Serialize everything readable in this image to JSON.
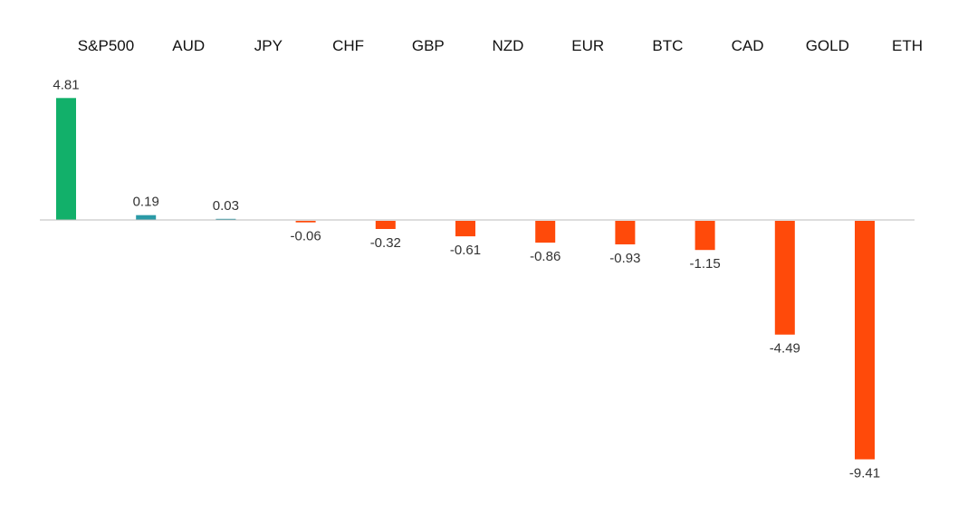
{
  "chart_data": {
    "type": "bar",
    "categories": [
      "S&P500",
      "AUD",
      "JPY",
      "CHF",
      "GBP",
      "NZD",
      "EUR",
      "BTC",
      "CAD",
      "GOLD",
      "ETH"
    ],
    "values": [
      4.81,
      0.19,
      0.03,
      -0.06,
      -0.32,
      -0.61,
      -0.86,
      -0.93,
      -1.15,
      -4.49,
      -9.41
    ],
    "value_labels": [
      "4.81",
      "0.19",
      "0.03",
      "-0.06",
      "-0.32",
      "-0.61",
      "-0.86",
      "-0.93",
      "-1.15",
      "-4.49",
      "-9.41"
    ],
    "title": "",
    "xlabel": "",
    "ylabel": "",
    "ylim": [
      -9.41,
      4.81
    ],
    "grid": false,
    "legend": "none",
    "category_label_position": "top",
    "colors": {
      "top": "#12b06a",
      "positive": "#2a9aa6",
      "negative": "#ff4a0a",
      "axis": "#bbbbbb"
    }
  }
}
